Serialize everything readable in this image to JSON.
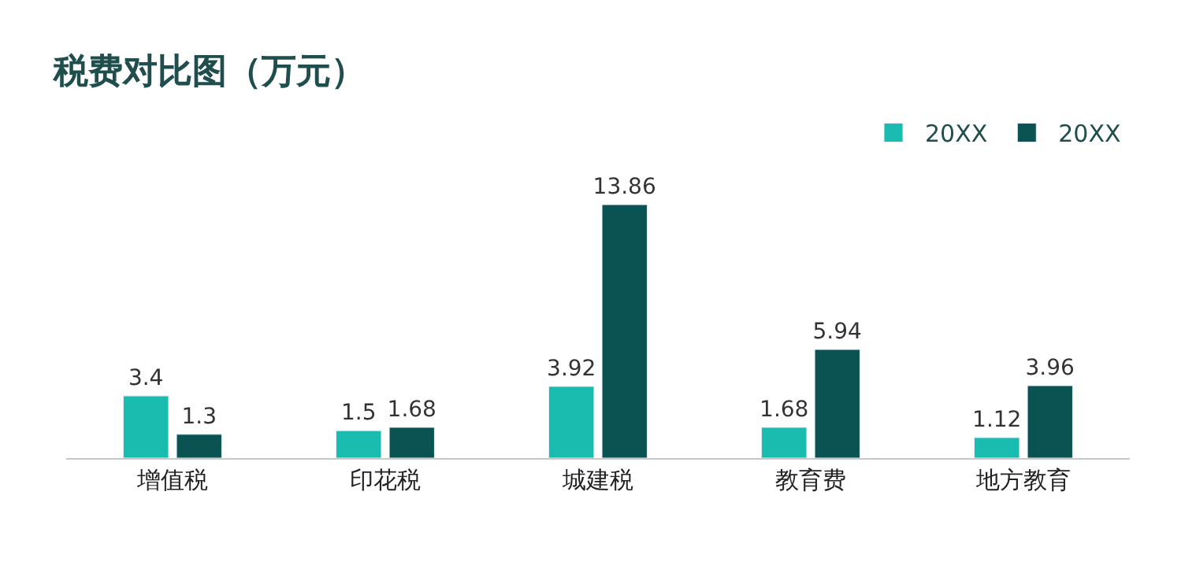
{
  "chart_data": {
    "type": "bar",
    "title": "税费对比图（万元）",
    "categories": [
      "增值税",
      "印花税",
      "城建税",
      "教育费",
      "地方教育"
    ],
    "series": [
      {
        "name": "20XX",
        "color": "#1abcb0",
        "values": [
          3.4,
          1.5,
          3.92,
          1.68,
          1.12
        ]
      },
      {
        "name": "20XX",
        "color": "#0b5352",
        "values": [
          1.3,
          1.68,
          13.86,
          5.94,
          3.96
        ]
      }
    ],
    "data_labels": true,
    "legend": "top right",
    "tick_labels": "x"
  }
}
